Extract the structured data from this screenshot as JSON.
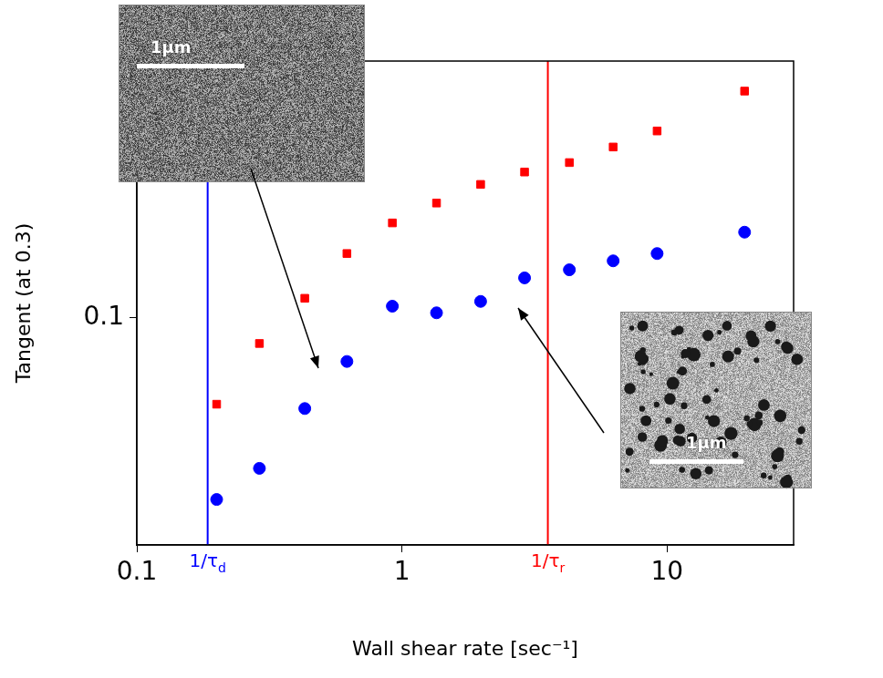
{
  "chart_data": {
    "type": "scatter",
    "x_label": "Wall shear rate [sec⁻¹]",
    "y_label": "Tangent (at 0.3)",
    "log": true,
    "grid": false,
    "xlim": [
      0.1,
      30
    ],
    "xticks": [
      0.1,
      1,
      10
    ],
    "ylim": [
      0.027,
      0.44
    ],
    "yticks": [
      0.1
    ],
    "x": [
      0.2,
      0.29,
      0.43,
      0.62,
      0.92,
      1.35,
      1.98,
      2.9,
      4.28,
      6.26,
      9.17,
      19.6
    ],
    "series": [
      {
        "color": "#ff0000",
        "marker": "square",
        "values": [
          0.0608,
          0.0863,
          0.112,
          0.145,
          0.173,
          0.194,
          0.216,
          0.232,
          0.245,
          0.268,
          0.294,
          0.37
        ]
      },
      {
        "color": "#0000ff",
        "marker": "circle",
        "values": [
          0.0351,
          0.042,
          0.0593,
          0.0778,
          0.107,
          0.103,
          0.11,
          0.126,
          0.132,
          0.139,
          0.145,
          0.164
        ]
      }
    ],
    "annotations": [
      {
        "type": "vline",
        "x": 0.185,
        "label": "1/τd",
        "color": "#0000ff"
      },
      {
        "type": "vline",
        "x": 3.55,
        "label": "1/τr",
        "color": "#ff0000"
      }
    ],
    "insets": [
      {
        "scale_label": "1μm"
      },
      {
        "scale_label": "1μm"
      }
    ]
  }
}
